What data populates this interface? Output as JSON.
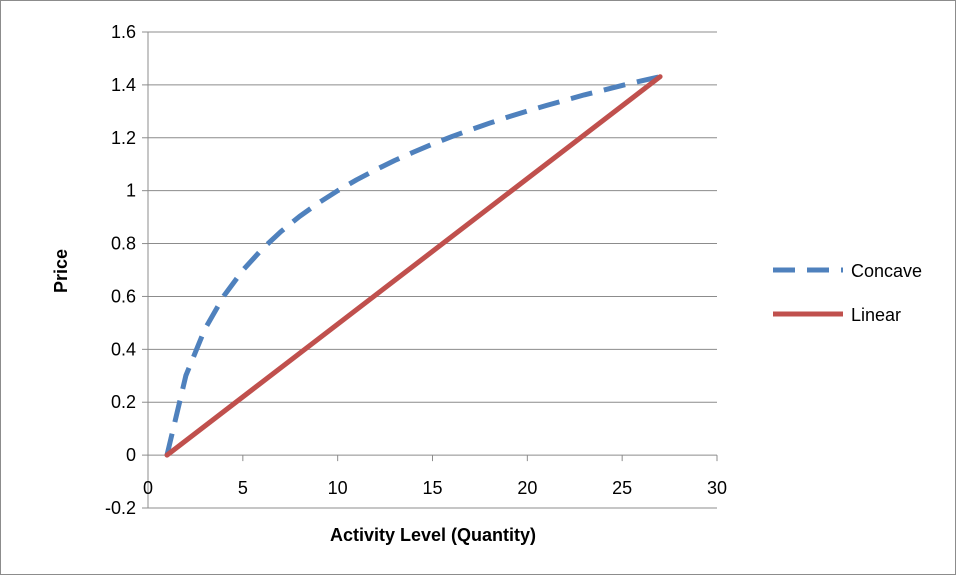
{
  "chart_data": {
    "type": "line",
    "title": "",
    "xlabel": "Activity Level (Quantity)",
    "ylabel": "Price",
    "xlim": [
      0,
      30
    ],
    "ylim": [
      -0.2,
      1.6
    ],
    "xticks": [
      0,
      5,
      10,
      15,
      20,
      25,
      30
    ],
    "yticks": [
      -0.2,
      0,
      0.2,
      0.4,
      0.6,
      0.8,
      1,
      1.2,
      1.4,
      1.6
    ],
    "xtick_labels": [
      "0",
      "5",
      "10",
      "15",
      "20",
      "25",
      "30"
    ],
    "ytick_labels": [
      "-0.2",
      "0",
      "0.2",
      "0.4",
      "0.6",
      "0.8",
      "1",
      "1.2",
      "1.4",
      "1.6"
    ],
    "grid": "horizontal",
    "legend_position": "right",
    "series": [
      {
        "name": "Concave",
        "style": "dashed",
        "color": "#4f81bd",
        "x": [
          1,
          2,
          3,
          4,
          5,
          6,
          7,
          8,
          9,
          10,
          11,
          12,
          13,
          14,
          15,
          16,
          17,
          18,
          19,
          20,
          21,
          22,
          23,
          24,
          25,
          26,
          27
        ],
        "y": [
          0,
          0.301,
          0.477,
          0.602,
          0.699,
          0.778,
          0.845,
          0.903,
          0.954,
          1.0,
          1.041,
          1.079,
          1.114,
          1.146,
          1.176,
          1.204,
          1.23,
          1.255,
          1.279,
          1.301,
          1.322,
          1.342,
          1.362,
          1.38,
          1.398,
          1.415,
          1.431
        ]
      },
      {
        "name": "Linear",
        "style": "solid",
        "color": "#c0504d",
        "x": [
          1,
          27
        ],
        "y": [
          0,
          1.431
        ]
      }
    ]
  }
}
